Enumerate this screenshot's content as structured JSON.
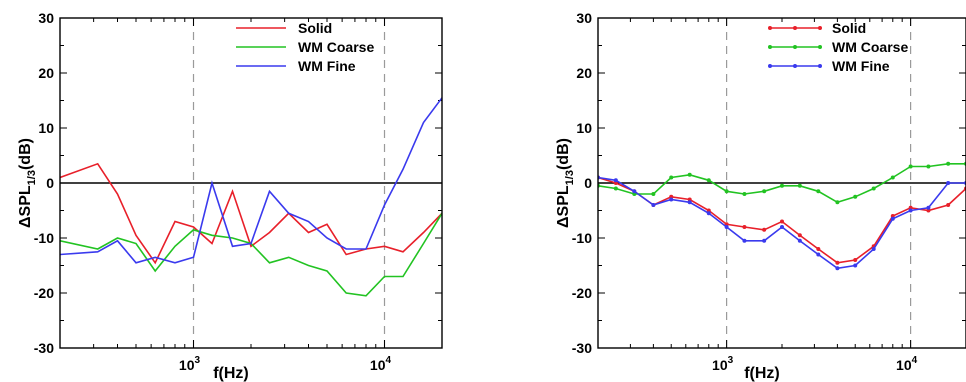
{
  "chart_data": [
    {
      "type": "line",
      "markers": false,
      "xscale": "log",
      "xlim": [
        200,
        20000
      ],
      "ylim": [
        -30,
        30
      ],
      "yticks": [
        -30,
        -20,
        -10,
        0,
        10,
        20,
        30
      ],
      "ytick_labels": [
        "-30",
        "-20",
        "-10",
        "0",
        "10",
        "20",
        "30"
      ],
      "xticks": [
        1000,
        10000
      ],
      "xtick_base": "10",
      "xtick_exponents": [
        "3",
        "4"
      ],
      "xlabel": "f(Hz)",
      "ylabel_main": "ΔSPL",
      "ylabel_sub": "1/3",
      "ylabel_unit": "(dB)",
      "grid_x_dashed": [
        1000,
        10000
      ],
      "zero_line": true,
      "legend_position": "top-right",
      "series": [
        {
          "name": "Solid",
          "color": "#e8202a",
          "x": [
            200,
            315,
            400,
            500,
            630,
            800,
            1000,
            1250,
            1600,
            2000,
            2500,
            3150,
            4000,
            5000,
            6300,
            8000,
            10000,
            12500,
            16000,
            20000
          ],
          "y": [
            1,
            3.5,
            -2,
            -9.5,
            -14.5,
            -7,
            -8,
            -11,
            -1.5,
            -11.5,
            -9,
            -5.5,
            -9,
            -7.5,
            -13,
            -12,
            -11.5,
            -12.5,
            -9,
            -5.5
          ]
        },
        {
          "name": "WM Coarse",
          "color": "#22c322",
          "x": [
            200,
            315,
            400,
            500,
            630,
            800,
            1000,
            1250,
            1600,
            2000,
            2500,
            3150,
            4000,
            5000,
            6300,
            8000,
            10000,
            12500,
            16000,
            20000
          ],
          "y": [
            -10.5,
            -12,
            -10,
            -11,
            -16,
            -11.5,
            -8.5,
            -9.5,
            -10,
            -11,
            -14.5,
            -13.5,
            -15,
            -16,
            -20,
            -20.5,
            -17,
            -17,
            -11,
            -5.5
          ]
        },
        {
          "name": "WM Fine",
          "color": "#3a3aee",
          "x": [
            200,
            315,
            400,
            500,
            630,
            800,
            1000,
            1250,
            1600,
            2000,
            2500,
            3150,
            4000,
            5000,
            6300,
            8000,
            10000,
            12500,
            16000,
            20000
          ],
          "y": [
            -13,
            -12.5,
            -10.5,
            -14.5,
            -13.5,
            -14.5,
            -13.5,
            0,
            -11.5,
            -11,
            -1.5,
            -5.5,
            -7,
            -10,
            -12,
            -12,
            -4,
            2.5,
            11,
            15.5
          ]
        }
      ]
    },
    {
      "type": "line",
      "markers": true,
      "xscale": "log",
      "xlim": [
        200,
        20000
      ],
      "ylim": [
        -30,
        30
      ],
      "yticks": [
        -30,
        -20,
        -10,
        0,
        10,
        20,
        30
      ],
      "ytick_labels": [
        "-30",
        "-20",
        "-10",
        "0",
        "10",
        "20",
        "30"
      ],
      "xticks": [
        1000,
        10000
      ],
      "xtick_base": "10",
      "xtick_exponents": [
        "3",
        "4"
      ],
      "xlabel": "f(Hz)",
      "ylabel_main": "ΔSPL",
      "ylabel_sub": "1/3",
      "ylabel_unit": "(dB)",
      "grid_x_dashed": [
        1000,
        10000
      ],
      "zero_line": true,
      "legend_position": "top-right",
      "series": [
        {
          "name": "Solid",
          "color": "#e8202a",
          "x": [
            200,
            250,
            315,
            400,
            500,
            630,
            800,
            1000,
            1250,
            1600,
            2000,
            2500,
            3150,
            4000,
            5000,
            6300,
            8000,
            10000,
            12500,
            16000,
            20000
          ],
          "y": [
            1,
            0,
            -1.5,
            -4,
            -2.5,
            -3,
            -5,
            -7.5,
            -8,
            -8.5,
            -7,
            -9.5,
            -12,
            -14.5,
            -14,
            -11.5,
            -6,
            -4.5,
            -5,
            -4,
            -1
          ]
        },
        {
          "name": "WM Coarse",
          "color": "#22c322",
          "x": [
            200,
            250,
            315,
            400,
            500,
            630,
            800,
            1000,
            1250,
            1600,
            2000,
            2500,
            3150,
            4000,
            5000,
            6300,
            8000,
            10000,
            12500,
            16000,
            20000
          ],
          "y": [
            -0.5,
            -1,
            -2,
            -2,
            1,
            1.5,
            0.5,
            -1.5,
            -2,
            -1.5,
            -0.5,
            -0.5,
            -1.5,
            -3.5,
            -2.5,
            -1,
            1,
            3,
            3,
            3.5,
            3.5
          ]
        },
        {
          "name": "WM Fine",
          "color": "#3a3aee",
          "x": [
            200,
            250,
            315,
            400,
            500,
            630,
            800,
            1000,
            1250,
            1600,
            2000,
            2500,
            3150,
            4000,
            5000,
            6300,
            8000,
            10000,
            12500,
            16000,
            20000
          ],
          "y": [
            1,
            0.5,
            -1.5,
            -4,
            -3,
            -3.5,
            -5.5,
            -8,
            -10.5,
            -10.5,
            -8,
            -10.5,
            -13,
            -15.5,
            -15,
            -12,
            -6.5,
            -5,
            -4.5,
            0,
            0
          ]
        }
      ]
    }
  ]
}
